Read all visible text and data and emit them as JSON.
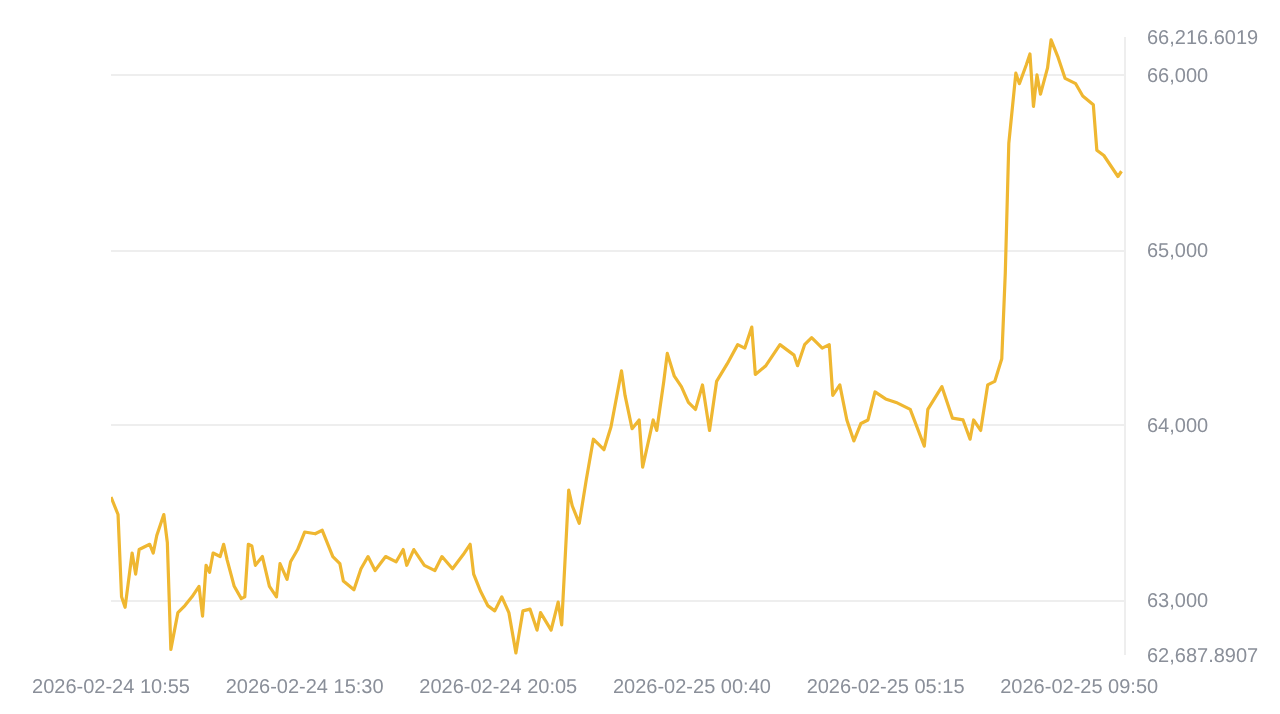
{
  "chart_data": {
    "type": "line",
    "x": [
      "2026-02-24T10:55",
      "2026-02-24T11:05",
      "2026-02-24T11:10",
      "2026-02-24T11:15",
      "2026-02-24T11:25",
      "2026-02-24T11:30",
      "2026-02-24T11:35",
      "2026-02-24T11:50",
      "2026-02-24T11:55",
      "2026-02-24T12:00",
      "2026-02-24T12:10",
      "2026-02-24T12:15",
      "2026-02-24T12:20",
      "2026-02-24T12:30",
      "2026-02-24T12:40",
      "2026-02-24T12:50",
      "2026-02-24T13:00",
      "2026-02-24T13:05",
      "2026-02-24T13:10",
      "2026-02-24T13:15",
      "2026-02-24T13:20",
      "2026-02-24T13:30",
      "2026-02-24T13:35",
      "2026-02-24T13:40",
      "2026-02-24T13:50",
      "2026-02-24T14:00",
      "2026-02-24T14:05",
      "2026-02-24T14:10",
      "2026-02-24T14:15",
      "2026-02-24T14:20",
      "2026-02-24T14:30",
      "2026-02-24T14:40",
      "2026-02-24T14:50",
      "2026-02-24T14:55",
      "2026-02-24T15:05",
      "2026-02-24T15:10",
      "2026-02-24T15:20",
      "2026-02-24T15:30",
      "2026-02-24T15:45",
      "2026-02-24T15:55",
      "2026-02-24T16:10",
      "2026-02-24T16:20",
      "2026-02-24T16:25",
      "2026-02-24T16:40",
      "2026-02-24T16:50",
      "2026-02-24T17:00",
      "2026-02-24T17:10",
      "2026-02-24T17:25",
      "2026-02-24T17:40",
      "2026-02-24T17:50",
      "2026-02-24T17:55",
      "2026-02-24T18:05",
      "2026-02-24T18:20",
      "2026-02-24T18:35",
      "2026-02-24T18:45",
      "2026-02-24T19:00",
      "2026-02-24T19:15",
      "2026-02-24T19:25",
      "2026-02-24T19:30",
      "2026-02-24T19:40",
      "2026-02-24T19:50",
      "2026-02-24T20:00",
      "2026-02-24T20:10",
      "2026-02-24T20:20",
      "2026-02-24T20:30",
      "2026-02-24T20:40",
      "2026-02-24T20:50",
      "2026-02-24T21:00",
      "2026-02-24T21:05",
      "2026-02-24T21:20",
      "2026-02-24T21:30",
      "2026-02-24T21:35",
      "2026-02-24T21:45",
      "2026-02-24T21:50",
      "2026-02-24T22:00",
      "2026-02-24T22:10",
      "2026-02-24T22:20",
      "2026-02-24T22:35",
      "2026-02-24T22:45",
      "2026-02-24T23:00",
      "2026-02-24T23:05",
      "2026-02-24T23:15",
      "2026-02-24T23:25",
      "2026-02-24T23:30",
      "2026-02-24T23:45",
      "2026-02-24T23:50",
      "2026-02-25T00:00",
      "2026-02-25T00:05",
      "2026-02-25T00:15",
      "2026-02-25T00:25",
      "2026-02-25T00:35",
      "2026-02-25T00:45",
      "2026-02-25T00:55",
      "2026-02-25T01:05",
      "2026-02-25T01:15",
      "2026-02-25T01:30",
      "2026-02-25T01:45",
      "2026-02-25T01:55",
      "2026-02-25T02:05",
      "2026-02-25T02:10",
      "2026-02-25T02:25",
      "2026-02-25T02:45",
      "2026-02-25T03:05",
      "2026-02-25T03:10",
      "2026-02-25T03:20",
      "2026-02-25T03:30",
      "2026-02-25T03:45",
      "2026-02-25T03:55",
      "2026-02-25T04:00",
      "2026-02-25T04:10",
      "2026-02-25T04:20",
      "2026-02-25T04:30",
      "2026-02-25T04:40",
      "2026-02-25T04:50",
      "2026-02-25T05:00",
      "2026-02-25T05:15",
      "2026-02-25T05:30",
      "2026-02-25T05:50",
      "2026-02-25T06:10",
      "2026-02-25T06:15",
      "2026-02-25T06:35",
      "2026-02-25T06:50",
      "2026-02-25T07:05",
      "2026-02-25T07:15",
      "2026-02-25T07:20",
      "2026-02-25T07:30",
      "2026-02-25T07:40",
      "2026-02-25T07:50",
      "2026-02-25T08:00",
      "2026-02-25T08:05",
      "2026-02-25T08:10",
      "2026-02-25T08:20",
      "2026-02-25T08:25",
      "2026-02-25T08:35",
      "2026-02-25T08:40",
      "2026-02-25T08:45",
      "2026-02-25T08:50",
      "2026-02-25T08:55",
      "2026-02-25T09:05",
      "2026-02-25T09:10",
      "2026-02-25T09:20",
      "2026-02-25T09:30",
      "2026-02-25T09:45",
      "2026-02-25T09:55",
      "2026-02-25T10:10",
      "2026-02-25T10:15",
      "2026-02-25T10:25",
      "2026-02-25T10:35",
      "2026-02-25T10:45",
      "2026-02-25T10:50"
    ],
    "series": [
      {
        "color": "#efb731",
        "values": [
          63590,
          63490,
          63020,
          62960,
          63270,
          63150,
          63290,
          63320,
          63270,
          63370,
          63490,
          63330,
          62720,
          62930,
          62970,
          63020,
          63080,
          62910,
          63200,
          63160,
          63270,
          63250,
          63320,
          63230,
          63080,
          63010,
          63020,
          63320,
          63310,
          63200,
          63250,
          63080,
          63020,
          63210,
          63120,
          63220,
          63290,
          63390,
          63380,
          63400,
          63250,
          63210,
          63110,
          63060,
          63180,
          63250,
          63170,
          63250,
          63220,
          63290,
          63200,
          63290,
          63200,
          63170,
          63250,
          63180,
          63260,
          63320,
          63150,
          63050,
          62970,
          62940,
          63020,
          62930,
          62700,
          62940,
          62950,
          62830,
          62930,
          62830,
          62990,
          62860,
          63630,
          63540,
          63440,
          63690,
          63920,
          63860,
          63990,
          64310,
          64170,
          63980,
          64030,
          63760,
          64030,
          63970,
          64250,
          64410,
          64280,
          64220,
          64130,
          64090,
          64230,
          63970,
          64250,
          64350,
          64460,
          64440,
          64560,
          64290,
          64340,
          64460,
          64400,
          64340,
          64460,
          64500,
          64440,
          64460,
          64170,
          64230,
          64030,
          63910,
          64010,
          64030,
          64190,
          64150,
          64130,
          64090,
          63880,
          64090,
          64220,
          64040,
          64030,
          63920,
          64030,
          63970,
          64230,
          64250,
          64380,
          64870,
          65610,
          66010,
          65950,
          66060,
          66120,
          65820,
          66000,
          65890,
          66040,
          66200,
          66100,
          65980,
          65950,
          65880,
          65830,
          65570,
          65540,
          65480,
          65420,
          65450
        ]
      }
    ],
    "xlim": [
      "2026-02-24T10:55",
      "2026-02-25T10:55"
    ],
    "xticks": [
      {
        "value": "2026-02-24T10:55",
        "label": "2026-02-24 10:55"
      },
      {
        "value": "2026-02-24T15:30",
        "label": "2026-02-24 15:30"
      },
      {
        "value": "2026-02-24T20:05",
        "label": "2026-02-24 20:05"
      },
      {
        "value": "2026-02-25T00:40",
        "label": "2026-02-25 00:40"
      },
      {
        "value": "2026-02-25T05:15",
        "label": "2026-02-25 05:15"
      },
      {
        "value": "2026-02-25T09:50",
        "label": "2026-02-25 09:50"
      }
    ],
    "ylim": [
      62687.8907,
      66216.6019
    ],
    "yticks": [
      {
        "value": 62687.8907,
        "label": "62,687.8907"
      },
      {
        "value": 63000,
        "label": "63,000"
      },
      {
        "value": 64000,
        "label": "64,000"
      },
      {
        "value": 65000,
        "label": "65,000"
      },
      {
        "value": 66000,
        "label": "66,000"
      },
      {
        "value": 66216.6019,
        "label": "66,216.6019"
      }
    ],
    "grid": "y"
  }
}
